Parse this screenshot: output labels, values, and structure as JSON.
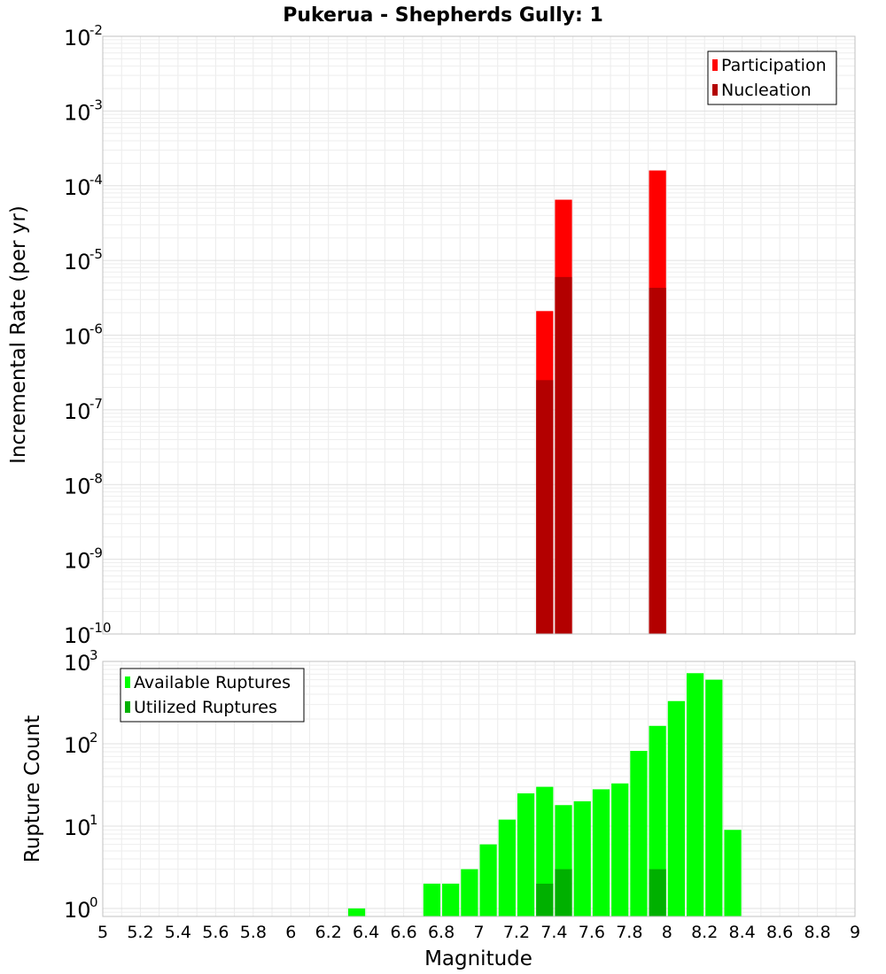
{
  "chart_data": [
    {
      "type": "bar",
      "title": "Pukerua - Shepherds Gully: 1",
      "xlabel": "",
      "ylabel": "Incremental Rate (per yr)",
      "y_scale": "log",
      "ylim": [
        1e-10,
        0.01
      ],
      "xlim": [
        5,
        9
      ],
      "bar_width": 0.1,
      "grid": true,
      "legend": {
        "placement": "top-right",
        "entries": [
          "Participation",
          "Nucleation"
        ]
      },
      "series": [
        {
          "name": "Participation",
          "color": "#ff0000",
          "points": [
            {
              "x": 7.35,
              "y": 2.1e-06
            },
            {
              "x": 7.45,
              "y": 6.5e-05
            },
            {
              "x": 7.95,
              "y": 0.00016
            }
          ]
        },
        {
          "name": "Nucleation",
          "color": "#b30000",
          "points": [
            {
              "x": 7.35,
              "y": 2.5e-07
            },
            {
              "x": 7.45,
              "y": 6e-06
            },
            {
              "x": 7.95,
              "y": 4.3e-06
            }
          ]
        }
      ]
    },
    {
      "type": "bar",
      "title": "",
      "xlabel": "Magnitude",
      "ylabel": "Rupture Count",
      "y_scale": "log",
      "ylim": [
        0.8,
        1000
      ],
      "xlim": [
        5,
        9
      ],
      "bar_width": 0.1,
      "grid": true,
      "legend": {
        "placement": "top-left",
        "entries": [
          "Available Ruptures",
          "Utilized Ruptures"
        ]
      },
      "x_ticks": [
        "5",
        "5.2",
        "5.4",
        "5.6",
        "5.8",
        "6",
        "6.2",
        "6.4",
        "6.6",
        "6.8",
        "7",
        "7.2",
        "7.4",
        "7.6",
        "7.8",
        "8",
        "8.2",
        "8.4",
        "8.6",
        "8.8",
        "9"
      ],
      "series": [
        {
          "name": "Available Ruptures",
          "color": "#00ff00",
          "points": [
            {
              "x": 6.35,
              "y": 1
            },
            {
              "x": 6.75,
              "y": 2
            },
            {
              "x": 6.85,
              "y": 2
            },
            {
              "x": 6.95,
              "y": 3
            },
            {
              "x": 7.05,
              "y": 6
            },
            {
              "x": 7.15,
              "y": 12
            },
            {
              "x": 7.25,
              "y": 25
            },
            {
              "x": 7.35,
              "y": 30
            },
            {
              "x": 7.45,
              "y": 18
            },
            {
              "x": 7.55,
              "y": 20
            },
            {
              "x": 7.65,
              "y": 28
            },
            {
              "x": 7.75,
              "y": 33
            },
            {
              "x": 7.85,
              "y": 82
            },
            {
              "x": 7.95,
              "y": 165
            },
            {
              "x": 8.05,
              "y": 330
            },
            {
              "x": 8.15,
              "y": 720
            },
            {
              "x": 8.25,
              "y": 600
            },
            {
              "x": 8.35,
              "y": 9
            }
          ]
        },
        {
          "name": "Utilized Ruptures",
          "color": "#00b000",
          "points": [
            {
              "x": 7.35,
              "y": 2
            },
            {
              "x": 7.45,
              "y": 3
            },
            {
              "x": 7.95,
              "y": 3
            }
          ]
        }
      ]
    }
  ],
  "y_tick_base": "10",
  "top_y_exponents": [
    "-10",
    "-9",
    "-8",
    "-7",
    "-6",
    "-5",
    "-4",
    "-3",
    "-2"
  ],
  "bottom_y_exponents": [
    "0",
    "1",
    "2",
    "3"
  ]
}
